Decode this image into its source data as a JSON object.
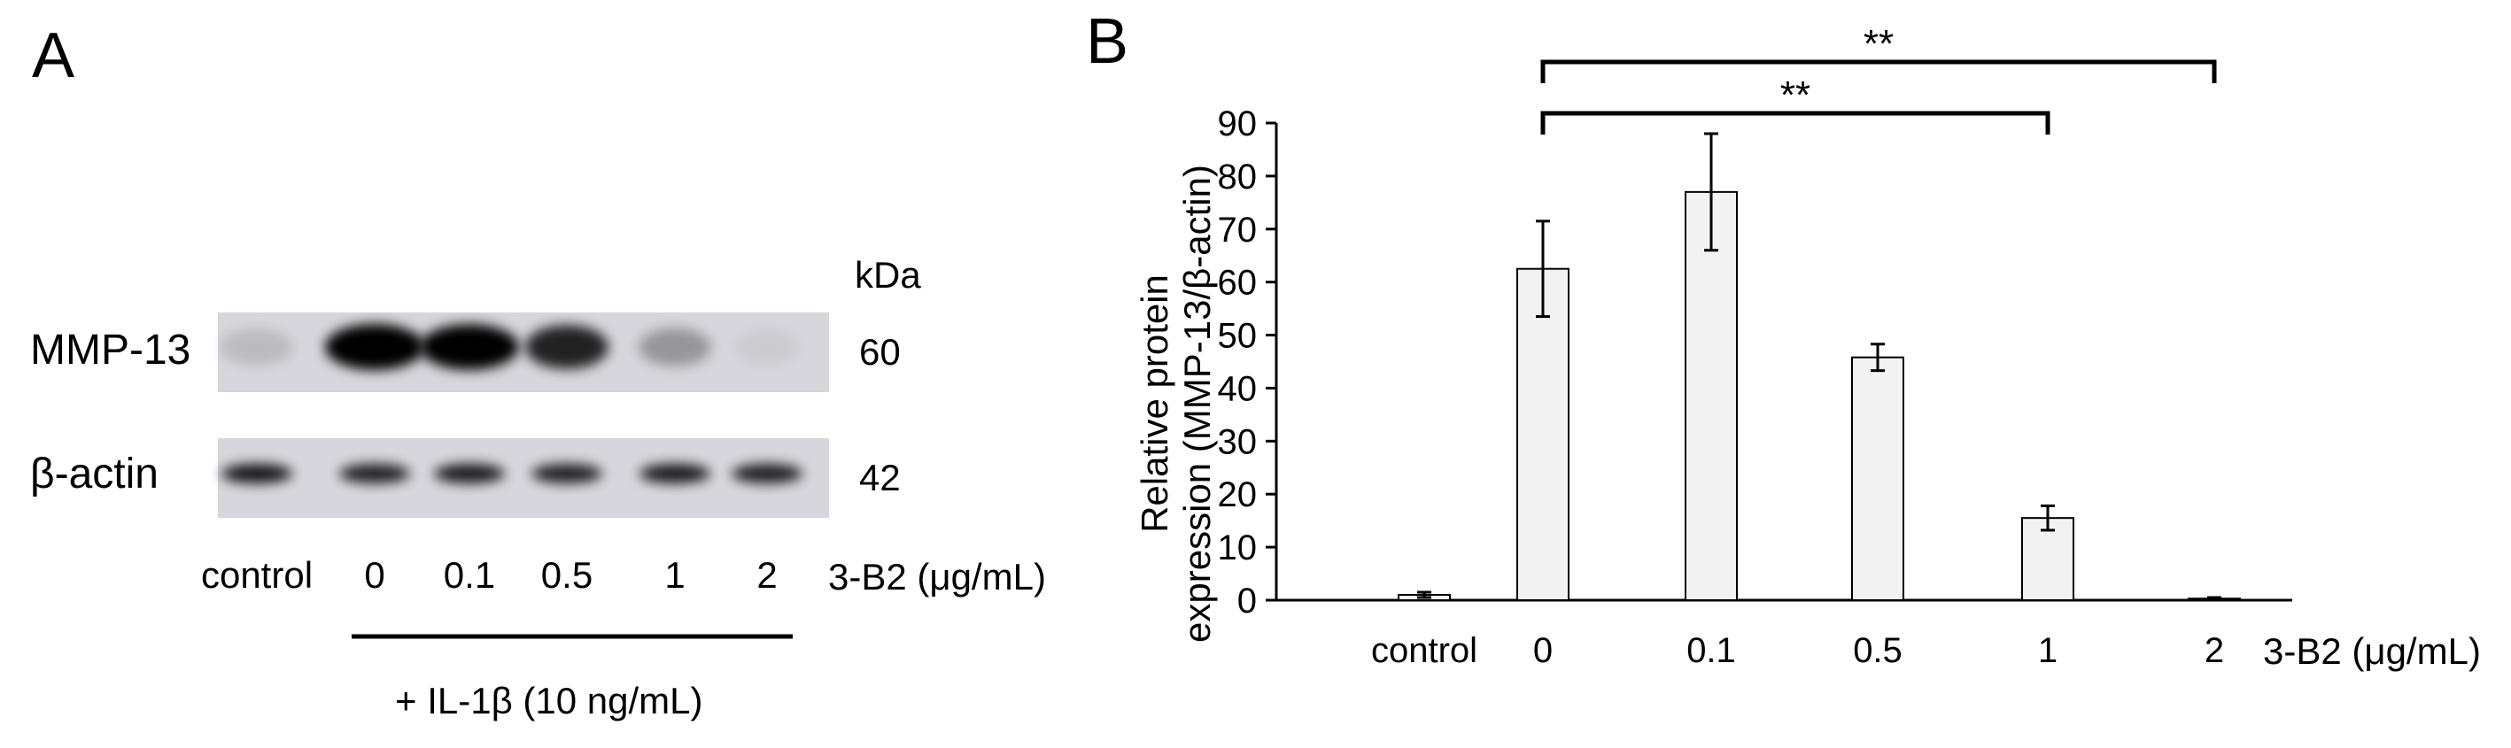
{
  "panel_a": {
    "letter": "A",
    "kda_label": "kDa",
    "bands": [
      {
        "name": "MMP-13",
        "kda": "60",
        "intensities": [
          0.12,
          1.0,
          0.95,
          0.8,
          0.28,
          0.05
        ]
      },
      {
        "name": "β-actin",
        "kda": "42",
        "intensities": [
          0.9,
          0.85,
          0.88,
          0.85,
          0.88,
          0.86
        ]
      }
    ],
    "lanes": [
      "control",
      "0",
      "0.1",
      "0.5",
      "1",
      "2"
    ],
    "treatment_label": "3-B2 (μg/mL)",
    "group_label": "+ IL-1β (10 ng/mL)"
  },
  "panel_b": {
    "letter": "B",
    "xunit_label": "3-B2 (μg/mL)",
    "significance": [
      {
        "from": "0",
        "to": "1",
        "label": "**"
      },
      {
        "from": "0",
        "to": "2",
        "label": "**"
      }
    ]
  },
  "chart_data": {
    "type": "bar",
    "categories": [
      "control",
      "0",
      "0.1",
      "0.5",
      "1",
      "2"
    ],
    "values": [
      1,
      62.5,
      77,
      45.8,
      15.5,
      0.3
    ],
    "errors": [
      0.5,
      9,
      11,
      2.5,
      2.3,
      0.2
    ],
    "ylabel_line1": "Relative protein",
    "ylabel_line2": "expression (MMP-13/β-actin)",
    "ylim": [
      0,
      90
    ],
    "yticks": [
      "0",
      "10",
      "20",
      "30",
      "40",
      "50",
      "60",
      "70",
      "80",
      "90"
    ],
    "grid": false,
    "bar_color": "#f2f2f2"
  }
}
